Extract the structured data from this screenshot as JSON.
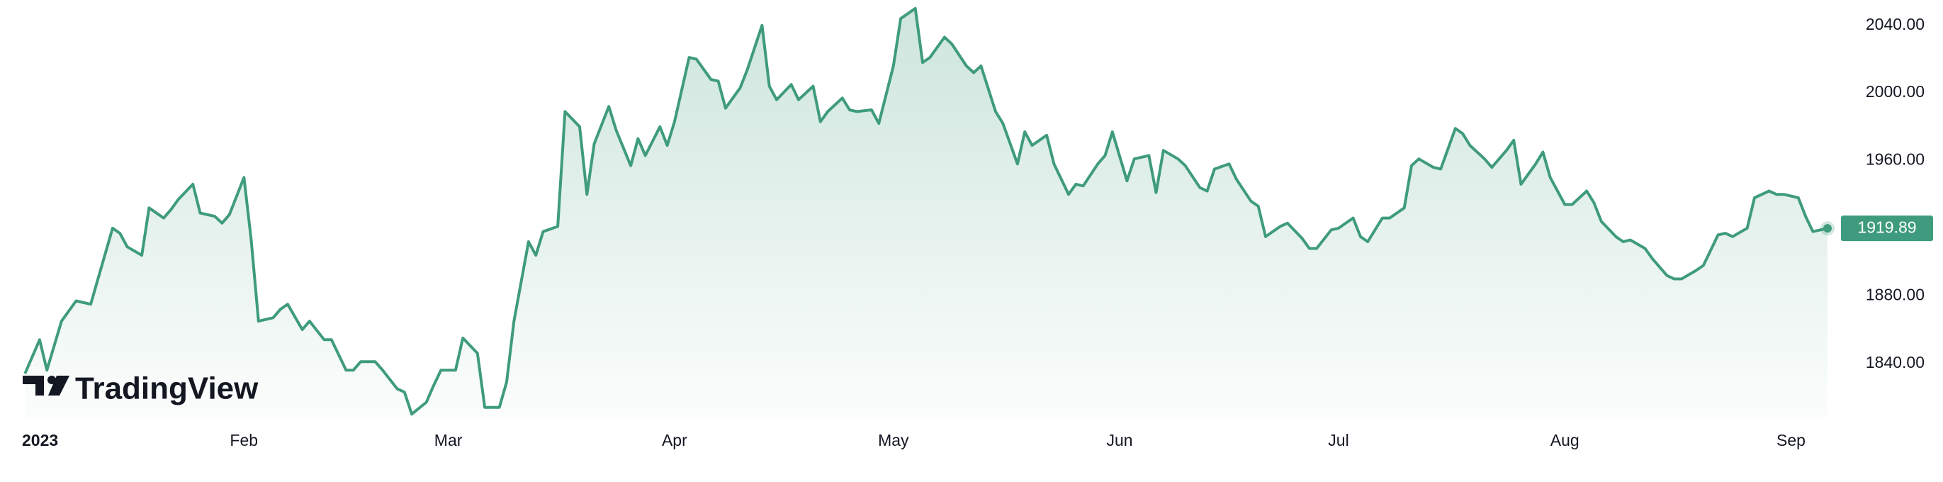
{
  "chart_data": {
    "type": "area",
    "color": "#3f9b7d",
    "watermark": "TradingView",
    "x": [
      1,
      3,
      4,
      6,
      8,
      10,
      13,
      14,
      15,
      17,
      18,
      20,
      21,
      22,
      24,
      25,
      27,
      28,
      29,
      31,
      32,
      33,
      35,
      36,
      37,
      39,
      40,
      42,
      43,
      45,
      46,
      47,
      49,
      50,
      52,
      53,
      54,
      56,
      57,
      58,
      60,
      61,
      63,
      64,
      66,
      67,
      68,
      70,
      71,
      72,
      74,
      75,
      77,
      78,
      79,
      81,
      82,
      84,
      85,
      86,
      88,
      89,
      90,
      92,
      93,
      95,
      96,
      97,
      99,
      100,
      102,
      103,
      104,
      106,
      107,
      109,
      110,
      111,
      113,
      114,
      115,
      117,
      118,
      120,
      121,
      123,
      124,
      125,
      127,
      128,
      130,
      131,
      132,
      134,
      135,
      137,
      138,
      139,
      141,
      142,
      144,
      145,
      146,
      148,
      149,
      150,
      152,
      153,
      155,
      156,
      157,
      159,
      160,
      162,
      163,
      164,
      166,
      167,
      169,
      170,
      171,
      173,
      174,
      176,
      177,
      178,
      180,
      181,
      183,
      184,
      185,
      187,
      188,
      190,
      191,
      192,
      194,
      195,
      197,
      198,
      199,
      201,
      202,
      204,
      205,
      206,
      208,
      209,
      210,
      212,
      213,
      215,
      216,
      217,
      219,
      220,
      221,
      223,
      224,
      226,
      227,
      228,
      230,
      231,
      233,
      234,
      235,
      237,
      238,
      240,
      241,
      242,
      244,
      245,
      246,
      248
    ],
    "values": [
      1834,
      1854,
      1836,
      1865,
      1877,
      1875,
      1920,
      1917,
      1909,
      1904,
      1932,
      1926,
      1931,
      1937,
      1946,
      1929,
      1927,
      1923,
      1928,
      1950,
      1913,
      1865,
      1867,
      1872,
      1875,
      1860,
      1865,
      1854,
      1854,
      1836,
      1836,
      1841,
      1841,
      1836,
      1825,
      1823,
      1810,
      1817,
      1827,
      1836,
      1836,
      1855,
      1846,
      1814,
      1814,
      1829,
      1865,
      1912,
      1904,
      1918,
      1921,
      1989,
      1980,
      1940,
      1970,
      1992,
      1978,
      1957,
      1973,
      1963,
      1980,
      1969,
      1983,
      2021,
      2020,
      2008,
      2007,
      1991,
      2003,
      2014,
      2040,
      2004,
      1996,
      2005,
      1996,
      2004,
      1983,
      1989,
      1997,
      1990,
      1989,
      1990,
      1982,
      2016,
      2044,
      2050,
      2018,
      2021,
      2033,
      2029,
      2016,
      2012,
      2016,
      1989,
      1982,
      1958,
      1977,
      1969,
      1975,
      1958,
      1940,
      1946,
      1945,
      1958,
      1963,
      1977,
      1948,
      1961,
      1963,
      1941,
      1966,
      1961,
      1957,
      1944,
      1942,
      1955,
      1958,
      1949,
      1936,
      1933,
      1915,
      1921,
      1923,
      1914,
      1908,
      1908,
      1919,
      1920,
      1926,
      1915,
      1912,
      1926,
      1926,
      1932,
      1957,
      1961,
      1956,
      1955,
      1979,
      1976,
      1969,
      1961,
      1956,
      1966,
      1972,
      1946,
      1958,
      1965,
      1950,
      1934,
      1934,
      1942,
      1935,
      1924,
      1915,
      1912,
      1913,
      1908,
      1902,
      1892,
      1890,
      1890,
      1895,
      1898,
      1916,
      1917,
      1915,
      1920,
      1938,
      1942,
      1940,
      1940,
      1938,
      1927,
      1918,
      1919.89
    ],
    "xlim": [
      0,
      248
    ],
    "xticks": [
      {
        "value": 0,
        "label": "2023"
      },
      {
        "value": 31,
        "label": "Feb"
      },
      {
        "value": 59,
        "label": "Mar"
      },
      {
        "value": 90,
        "label": "Apr"
      },
      {
        "value": 120,
        "label": "May"
      },
      {
        "value": 151,
        "label": "Jun"
      },
      {
        "value": 181,
        "label": "Jul"
      },
      {
        "value": 212,
        "label": "Aug"
      },
      {
        "value": 243,
        "label": "Sep"
      }
    ],
    "ylim": [
      1808,
      2055
    ],
    "yticks": [
      {
        "value": 1840,
        "label": "1840.00"
      },
      {
        "value": 1880,
        "label": "1880.00"
      },
      {
        "value": 1960,
        "label": "1960.00"
      },
      {
        "value": 2000,
        "label": "2000.00"
      },
      {
        "value": 2040,
        "label": "2040.00"
      }
    ]
  }
}
